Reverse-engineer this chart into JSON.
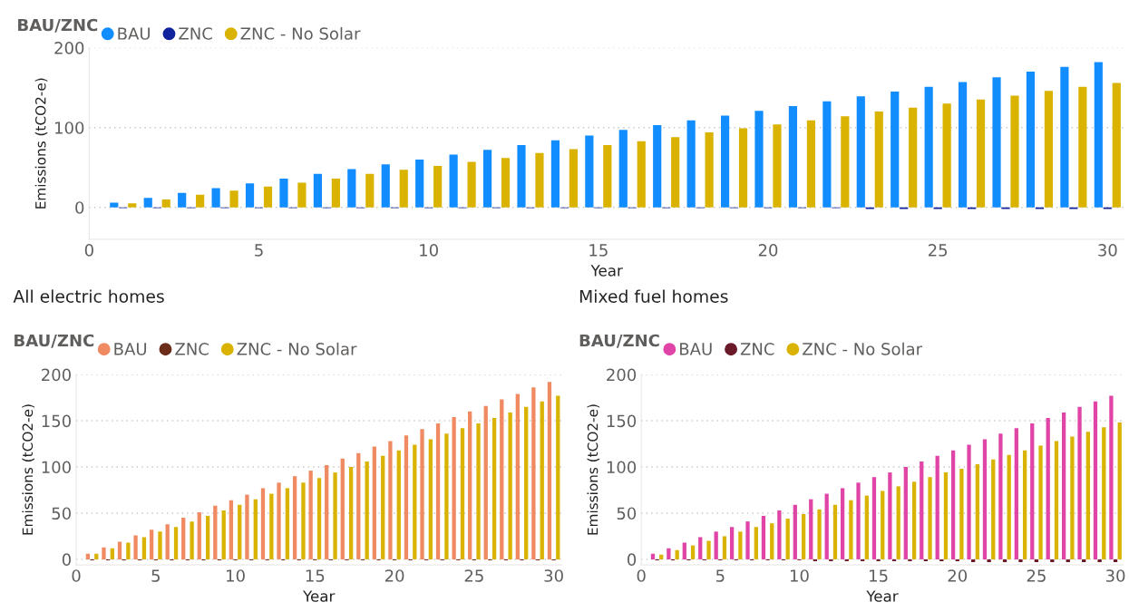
{
  "chart_data": [
    {
      "type": "bar",
      "xlabel": "Year",
      "ylabel": "Emissions (tCO2-e)",
      "legend_title": "BAU/ZNC",
      "legend": "top left",
      "grid": "y",
      "x": [
        1,
        2,
        3,
        4,
        5,
        6,
        7,
        8,
        9,
        10,
        11,
        12,
        13,
        14,
        15,
        16,
        17,
        18,
        19,
        20,
        21,
        22,
        23,
        24,
        25,
        26,
        27,
        28,
        29,
        30
      ],
      "xlim": [
        0,
        30.5
      ],
      "xticks": [
        0,
        5,
        10,
        15,
        20,
        25,
        30
      ],
      "ylim": [
        -40,
        200
      ],
      "yticks": [
        0,
        100,
        200
      ],
      "series": [
        {
          "name": "BAU",
          "color": "#118dff",
          "values": [
            6,
            12,
            18,
            24,
            30,
            36,
            42,
            48,
            54,
            60,
            66,
            72,
            78,
            84,
            90,
            97,
            103,
            109,
            115,
            121,
            127,
            133,
            139,
            145,
            151,
            157,
            163,
            170,
            176,
            182
          ]
        },
        {
          "name": "ZNC",
          "color": "#12239e",
          "values": [
            -1,
            -1,
            -1,
            -1,
            -1,
            -1,
            -1,
            -1,
            -1,
            -1,
            -1,
            -1,
            -1,
            -1,
            -1,
            -1,
            -1,
            -1,
            -1,
            -1,
            -1,
            -1,
            -2,
            -2,
            -2,
            -2,
            -2,
            -2,
            -2,
            -2
          ]
        },
        {
          "name": "ZNC - No Solar",
          "color": "#d9b300",
          "values": [
            5,
            10,
            16,
            21,
            26,
            31,
            36,
            42,
            47,
            52,
            57,
            62,
            68,
            73,
            78,
            83,
            88,
            94,
            99,
            104,
            109,
            114,
            120,
            125,
            130,
            135,
            140,
            146,
            151,
            156
          ]
        }
      ]
    },
    {
      "type": "bar",
      "title": "All electric homes",
      "xlabel": "Year",
      "ylabel": "Emissions (tCO2-e)",
      "legend_title": "BAU/ZNC",
      "legend": "top left",
      "grid": "y",
      "x": [
        1,
        2,
        3,
        4,
        5,
        6,
        7,
        8,
        9,
        10,
        11,
        12,
        13,
        14,
        15,
        16,
        17,
        18,
        19,
        20,
        21,
        22,
        23,
        24,
        25,
        26,
        27,
        28,
        29,
        30
      ],
      "xlim": [
        0,
        30.5
      ],
      "xticks": [
        0,
        5,
        10,
        15,
        20,
        25,
        30
      ],
      "ylim": [
        -6,
        200
      ],
      "yticks": [
        0,
        50,
        100,
        150,
        200
      ],
      "series": [
        {
          "name": "BAU",
          "color": "#ef8a62",
          "values": [
            6,
            13,
            19,
            26,
            32,
            38,
            45,
            51,
            58,
            64,
            70,
            77,
            83,
            90,
            96,
            102,
            109,
            115,
            122,
            128,
            134,
            141,
            147,
            154,
            160,
            166,
            173,
            179,
            186,
            192
          ]
        },
        {
          "name": "ZNC",
          "color": "#6b2c1a",
          "values": [
            -1,
            -1,
            -1,
            -1,
            -1,
            -1,
            -1,
            -1,
            -1,
            -1,
            -1,
            -1,
            -1,
            -1,
            -1,
            -1,
            -1,
            -1,
            -1,
            -1,
            -1,
            -1,
            -1,
            -1,
            -1,
            -1,
            -1,
            -1,
            -1,
            -1
          ]
        },
        {
          "name": "ZNC - No Solar",
          "color": "#d9b300",
          "values": [
            6,
            12,
            18,
            24,
            30,
            35,
            41,
            47,
            53,
            59,
            65,
            71,
            77,
            83,
            88,
            94,
            100,
            106,
            112,
            118,
            124,
            130,
            136,
            142,
            147,
            153,
            159,
            165,
            171,
            177
          ]
        }
      ]
    },
    {
      "type": "bar",
      "title": "Mixed fuel homes",
      "xlabel": "Year",
      "ylabel": "Emissions (tCO2-e)",
      "legend_title": "BAU/ZNC",
      "legend": "top left",
      "grid": "y",
      "x": [
        1,
        2,
        3,
        4,
        5,
        6,
        7,
        8,
        9,
        10,
        11,
        12,
        13,
        14,
        15,
        16,
        17,
        18,
        19,
        20,
        21,
        22,
        23,
        24,
        25,
        26,
        27,
        28,
        29,
        30
      ],
      "xlim": [
        0,
        30.5
      ],
      "xticks": [
        0,
        5,
        10,
        15,
        20,
        25,
        30
      ],
      "ylim": [
        -6,
        200
      ],
      "yticks": [
        0,
        50,
        100,
        150,
        200
      ],
      "series": [
        {
          "name": "BAU",
          "color": "#e044a7",
          "values": [
            6,
            12,
            18,
            24,
            30,
            35,
            41,
            47,
            53,
            59,
            65,
            71,
            77,
            83,
            89,
            94,
            100,
            106,
            112,
            118,
            124,
            130,
            136,
            142,
            147,
            153,
            159,
            165,
            171,
            177
          ]
        },
        {
          "name": "ZNC",
          "color": "#6b1a2a",
          "values": [
            -1,
            -1,
            -1,
            -1,
            -1,
            -1,
            -1,
            -1,
            -1,
            -1,
            -2,
            -2,
            -2,
            -2,
            -2,
            -2,
            -2,
            -2,
            -2,
            -2,
            -3,
            -3,
            -3,
            -3,
            -3,
            -3,
            -3,
            -3,
            -3,
            -3
          ]
        },
        {
          "name": "ZNC - No Solar",
          "color": "#d9b300",
          "values": [
            5,
            10,
            15,
            20,
            25,
            30,
            35,
            39,
            44,
            49,
            54,
            59,
            64,
            69,
            74,
            79,
            84,
            89,
            94,
            98,
            103,
            108,
            113,
            118,
            123,
            128,
            133,
            138,
            143,
            148
          ]
        }
      ]
    }
  ]
}
